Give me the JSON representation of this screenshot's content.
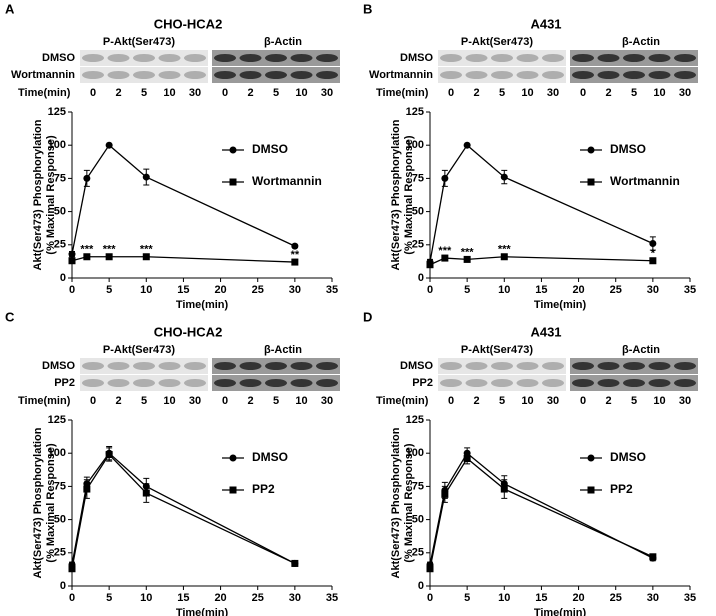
{
  "chart_data": [
    {
      "type": "line",
      "panel": "A",
      "title": "CHO-HCA2",
      "blot": {
        "headers": [
          "P-Akt(Ser473)",
          "β-Actin"
        ],
        "rows": [
          "DMSO",
          "Wortmannin"
        ],
        "time_label": "Time(min)",
        "times": [
          0,
          2,
          5,
          10,
          30
        ]
      },
      "x": [
        0,
        2,
        5,
        10,
        30
      ],
      "series": [
        {
          "name": "DMSO",
          "color": "#000000",
          "marker": "circle",
          "values": [
            18,
            75,
            100,
            76,
            24
          ],
          "errors": [
            2,
            6,
            0,
            6,
            1
          ]
        },
        {
          "name": "Wortmannin",
          "color": "#000000",
          "marker": "square",
          "values": [
            13,
            16,
            16,
            16,
            12
          ],
          "errors": [
            2,
            2,
            2,
            2,
            1
          ]
        }
      ],
      "annotations": [
        {
          "text": "***",
          "x": 2
        },
        {
          "text": "***",
          "x": 5
        },
        {
          "text": "***",
          "x": 10
        },
        {
          "text": "**",
          "x": 30
        }
      ],
      "xlim": [
        0,
        35
      ],
      "xticks": [
        0,
        5,
        10,
        15,
        20,
        25,
        30,
        35
      ],
      "ylim": [
        0,
        125
      ],
      "yticks": [
        0,
        25,
        50,
        75,
        100,
        125
      ],
      "x_label": "Time(min)",
      "y_label": [
        "Akt(Ser473) Phosphorylation",
        "(% Maximal Response)"
      ]
    },
    {
      "type": "line",
      "panel": "B",
      "title": "A431",
      "blot": {
        "headers": [
          "P-Akt(Ser473)",
          "β-Actin"
        ],
        "rows": [
          "DMSO",
          "Wortmannin"
        ],
        "time_label": "Time(min)",
        "times": [
          0,
          2,
          5,
          10,
          30
        ]
      },
      "x": [
        0,
        2,
        5,
        10,
        30
      ],
      "series": [
        {
          "name": "DMSO",
          "color": "#000000",
          "marker": "circle",
          "values": [
            12,
            75,
            100,
            76,
            26
          ],
          "errors": [
            2,
            6,
            0,
            5,
            5
          ]
        },
        {
          "name": "Wortmannin",
          "color": "#000000",
          "marker": "square",
          "values": [
            10,
            15,
            14,
            16,
            13
          ],
          "errors": [
            2,
            2,
            1,
            2,
            1
          ]
        }
      ],
      "annotations": [
        {
          "text": "***",
          "x": 2
        },
        {
          "text": "***",
          "x": 5
        },
        {
          "text": "***",
          "x": 10
        },
        {
          "text": "*",
          "x": 30
        }
      ],
      "xlim": [
        0,
        35
      ],
      "xticks": [
        0,
        5,
        10,
        15,
        20,
        25,
        30,
        35
      ],
      "ylim": [
        0,
        125
      ],
      "yticks": [
        0,
        25,
        50,
        75,
        100,
        125
      ],
      "x_label": "Time(min)",
      "y_label": [
        "Akt(Ser473) Phosphorylation",
        "(% Maximal Response)"
      ]
    },
    {
      "type": "line",
      "panel": "C",
      "title": "CHO-HCA2",
      "blot": {
        "headers": [
          "P-Akt(Ser473)",
          "β-Actin"
        ],
        "rows": [
          "DMSO",
          "PP2"
        ],
        "time_label": "Time(min)",
        "times": [
          0,
          2,
          5,
          10,
          30
        ]
      },
      "x": [
        0,
        2,
        5,
        10,
        30
      ],
      "series": [
        {
          "name": "DMSO",
          "color": "#000000",
          "marker": "circle",
          "values": [
            16,
            77,
            100,
            75,
            17
          ],
          "errors": [
            2,
            5,
            5,
            6,
            2
          ]
        },
        {
          "name": "PP2",
          "color": "#000000",
          "marker": "square",
          "values": [
            13,
            73,
            99,
            70,
            17
          ],
          "errors": [
            2,
            7,
            5,
            7,
            2
          ]
        }
      ],
      "annotations": [],
      "xlim": [
        0,
        35
      ],
      "xticks": [
        0,
        5,
        10,
        15,
        20,
        25,
        30,
        35
      ],
      "ylim": [
        0,
        125
      ],
      "yticks": [
        0,
        25,
        50,
        75,
        100,
        125
      ],
      "x_label": "Time(min)",
      "y_label": [
        "Akt(Ser473) Phosphorylation",
        "(% Maximal Response)"
      ]
    },
    {
      "type": "line",
      "panel": "D",
      "title": "A431",
      "blot": {
        "headers": [
          "P-Akt(Ser473)",
          "β-Actin"
        ],
        "rows": [
          "DMSO",
          "PP2"
        ],
        "time_label": "Time(min)",
        "times": [
          0,
          2,
          5,
          10,
          30
        ]
      },
      "x": [
        0,
        2,
        5,
        10,
        30
      ],
      "series": [
        {
          "name": "DMSO",
          "color": "#000000",
          "marker": "circle",
          "values": [
            16,
            72,
            100,
            77,
            21
          ],
          "errors": [
            2,
            6,
            4,
            6,
            2
          ]
        },
        {
          "name": "PP2",
          "color": "#000000",
          "marker": "square",
          "values": [
            13,
            69,
            96,
            73,
            22
          ],
          "errors": [
            2,
            6,
            4,
            7,
            2
          ]
        }
      ],
      "annotations": [],
      "xlim": [
        0,
        35
      ],
      "xticks": [
        0,
        5,
        10,
        15,
        20,
        25,
        30,
        35
      ],
      "ylim": [
        0,
        125
      ],
      "yticks": [
        0,
        25,
        50,
        75,
        100,
        125
      ],
      "x_label": "Time(min)",
      "y_label": [
        "Akt(Ser473) Phosphorylation",
        "(% Maximal Response)"
      ]
    }
  ]
}
